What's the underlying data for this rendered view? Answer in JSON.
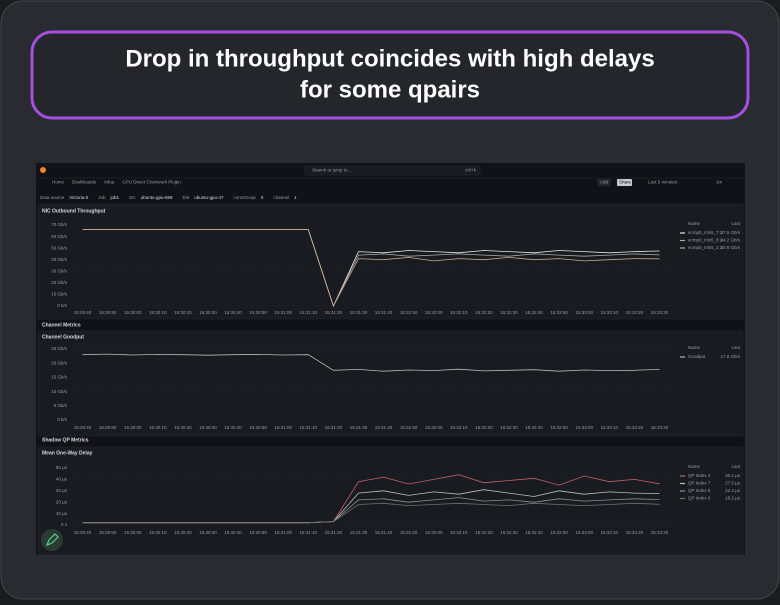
{
  "banner": {
    "title_line1": "Drop in throughput coincides with high delays",
    "title_line2": "for some qpairs"
  },
  "topbar": {
    "search": "Search or jump to...",
    "shortcut": "ctrl+k",
    "breadcrumbs": [
      "Home",
      "Dashboards",
      "Infua",
      "GPU Direct Clockwork Plugin"
    ],
    "add": "Add",
    "share": "Share",
    "time_range": "Last 5 minutes",
    "refresh": "1m"
  },
  "variables": [
    {
      "label": "Data source",
      "value": "Victoria-0"
    },
    {
      "label": "Job",
      "value": "job1"
    },
    {
      "label": "Src",
      "value": "ubuntu-gpu-659"
    },
    {
      "label": "Dst",
      "value": "ubuntu-gpu-47"
    },
    {
      "label": "connGroup",
      "value": "0"
    },
    {
      "label": "channel",
      "value": "1"
    }
  ],
  "rows": [
    "Channel Metrics",
    "Shadow QP Metrics"
  ],
  "legend_headers": {
    "name": "Name",
    "last": "Last"
  },
  "chart_data": [
    {
      "type": "line",
      "title": "NIC Outbound Throughput",
      "categories": [
        "15:29:40",
        "15:29:50",
        "15:30:00",
        "15:30:10",
        "15:30:20",
        "15:30:30",
        "15:30:40",
        "15:30:50",
        "15:31:00",
        "15:31:10",
        "15:31:20",
        "15:31:30",
        "15:31:40",
        "15:31:50",
        "15:32:00",
        "15:32:10",
        "15:32:20",
        "15:32:30",
        "15:32:40",
        "15:32:50",
        "15:33:00",
        "15:33:10",
        "15:33:20",
        "15:33:30"
      ],
      "ylim": [
        0,
        70
      ],
      "yticks": [
        {
          "value": 0,
          "label": "0 b/s"
        },
        {
          "value": 10,
          "label": "10 Gb/s"
        },
        {
          "value": 20,
          "label": "20 Gb/s"
        },
        {
          "value": 30,
          "label": "30 Gb/s"
        },
        {
          "value": 40,
          "label": "40 Gb/s"
        },
        {
          "value": 50,
          "label": "50 Gb/s"
        },
        {
          "value": 60,
          "label": "60 Gb/s"
        },
        {
          "value": 70,
          "label": "70 Gb/s"
        }
      ],
      "grid": true,
      "series": [
        {
          "name": "ecmp0_mlx5_7:1",
          "color": "#e8e8e8",
          "legend_value": "47.5 Gb/s",
          "values": [
            66,
            66,
            66,
            66,
            66,
            66,
            66,
            66,
            66,
            66,
            0,
            47,
            46,
            48,
            47,
            46,
            48,
            47,
            46,
            48,
            47,
            46,
            47,
            47.5
          ]
        },
        {
          "name": "ecmp0_mlx5_8:1",
          "color": "#a9a9a9",
          "legend_value": "44.2 Gb/s",
          "values": [
            66,
            66,
            66,
            66,
            66,
            66,
            66,
            66,
            66,
            66,
            0,
            44,
            45,
            43,
            44,
            45,
            44,
            43,
            45,
            44,
            43,
            44,
            45,
            44.2
          ]
        },
        {
          "name": "ecmp0_mlx5_2:1",
          "color": "#c8a98a",
          "legend_value": "40.8 Gb/s",
          "values": [
            66,
            66,
            66,
            66,
            66,
            66,
            66,
            66,
            66,
            66,
            0,
            41,
            40,
            42,
            39,
            41,
            40,
            42,
            40,
            41,
            39,
            40,
            41,
            40.8
          ]
        }
      ]
    },
    {
      "type": "line",
      "title": "Channel Goodput",
      "categories": [
        "15:29:40",
        "15:29:50",
        "15:30:00",
        "15:30:10",
        "15:30:20",
        "15:30:30",
        "15:30:40",
        "15:30:50",
        "15:31:00",
        "15:31:10",
        "15:31:20",
        "15:31:30",
        "15:31:40",
        "15:31:50",
        "15:32:00",
        "15:32:10",
        "15:32:20",
        "15:32:30",
        "15:32:40",
        "15:32:50",
        "15:33:00",
        "15:33:10",
        "15:33:20",
        "15:33:30"
      ],
      "ylim": [
        0,
        25
      ],
      "yticks": [
        {
          "value": 0,
          "label": "0 b/s"
        },
        {
          "value": 5,
          "label": "5 Gb/s"
        },
        {
          "value": 10,
          "label": "10 Gb/s"
        },
        {
          "value": 15,
          "label": "15 Gb/s"
        },
        {
          "value": 20,
          "label": "20 Gb/s"
        },
        {
          "value": 25,
          "label": "25 Gb/s"
        }
      ],
      "grid": true,
      "series": [
        {
          "name": "Goodput",
          "color": "#b8b8b8",
          "legend_value": "17.8 Gb/s",
          "values": [
            23,
            23.2,
            22.9,
            23.1,
            23,
            22.8,
            23,
            23.1,
            22.9,
            23,
            17.5,
            17.8,
            17.2,
            17.6,
            17.4,
            17.9,
            17.3,
            17.5,
            17.7,
            17.2,
            17.6,
            17.4,
            17.5,
            17.8
          ]
        }
      ]
    },
    {
      "type": "line",
      "title": "Mean One-Way Delay",
      "categories": [
        "15:29:40",
        "15:29:50",
        "15:30:00",
        "15:30:10",
        "15:30:20",
        "15:30:30",
        "15:30:40",
        "15:30:50",
        "15:31:00",
        "15:31:10",
        "15:31:20",
        "15:31:30",
        "15:31:40",
        "15:31:50",
        "15:32:00",
        "15:32:10",
        "15:32:20",
        "15:32:30",
        "15:32:40",
        "15:32:50",
        "15:33:00",
        "15:33:10",
        "15:33:20",
        "15:33:30"
      ],
      "ylim": [
        0,
        50
      ],
      "yticks": [
        {
          "value": 0,
          "label": "0 s"
        },
        {
          "value": 10,
          "label": "10 µs"
        },
        {
          "value": 20,
          "label": "20 µs"
        },
        {
          "value": 30,
          "label": "30 µs"
        },
        {
          "value": 40,
          "label": "40 µs"
        },
        {
          "value": 50,
          "label": "50 µs"
        }
      ],
      "grid": true,
      "series": [
        {
          "name": "QP Index 3",
          "color": "#c4606b",
          "legend_value": "36.1 µs",
          "values": [
            2,
            2,
            2,
            2,
            2,
            2,
            2,
            2,
            2,
            2,
            3,
            38,
            42,
            36,
            40,
            44,
            37,
            39,
            41,
            35,
            43,
            38,
            40,
            36.1
          ]
        },
        {
          "name": "QP Index 7",
          "color": "#bdbdbd",
          "legend_value": "27.5 µs",
          "values": [
            2,
            2,
            2,
            2,
            2,
            2,
            2,
            2,
            2,
            2,
            3,
            28,
            30,
            26,
            29,
            27,
            31,
            28,
            25,
            30,
            27,
            29,
            28,
            27.5
          ]
        },
        {
          "name": "QP Index 5",
          "color": "#8e8e8e",
          "legend_value": "22.4 µs",
          "values": [
            2,
            2,
            2,
            2,
            2,
            2,
            2,
            2,
            2,
            2,
            3,
            22,
            23,
            20,
            22,
            24,
            21,
            22,
            20,
            23,
            21,
            22,
            23,
            22.4
          ]
        },
        {
          "name": "QP Index 0",
          "color": "#6f6f6f",
          "legend_value": "18.2 µs",
          "values": [
            2,
            2,
            2,
            2,
            2,
            2,
            2,
            2,
            2,
            2,
            3,
            18,
            19,
            17,
            18,
            19,
            18,
            17,
            19,
            18,
            17,
            18,
            19,
            18.2
          ]
        }
      ]
    }
  ]
}
